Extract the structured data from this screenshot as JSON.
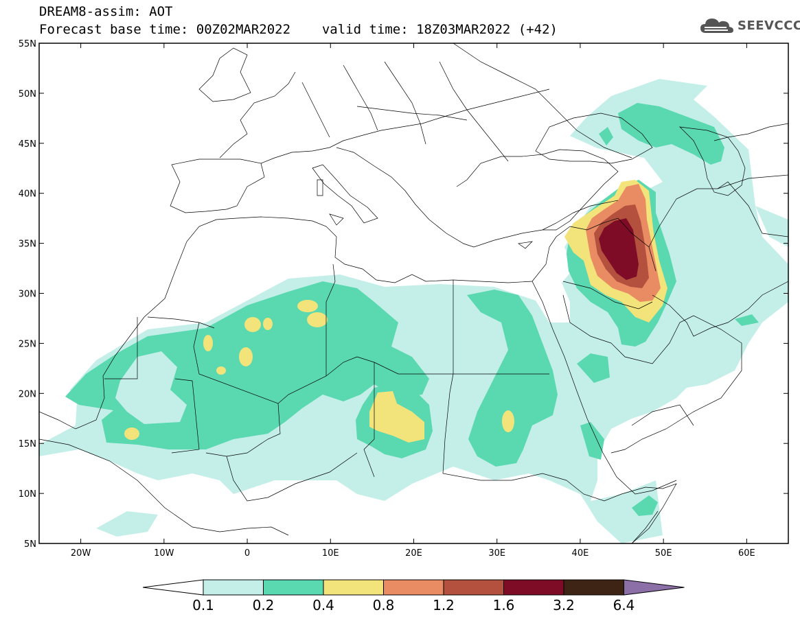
{
  "header": {
    "title": "DREAM8-assim: AOT",
    "base_time": "Forecast base time: 00Z02MAR2022",
    "valid_time": "valid time: 18Z03MAR2022 (+42)"
  },
  "logo": {
    "text": "SEEVCCC",
    "icon": "cloud-icon"
  },
  "map": {
    "lon_range": [
      -25,
      65
    ],
    "lat_range": [
      5,
      55
    ],
    "lon_ticks": [
      {
        "value": -20,
        "label": "20W"
      },
      {
        "value": -10,
        "label": "10W"
      },
      {
        "value": 0,
        "label": "0"
      },
      {
        "value": 10,
        "label": "10E"
      },
      {
        "value": 20,
        "label": "20E"
      },
      {
        "value": 30,
        "label": "30E"
      },
      {
        "value": 40,
        "label": "40E"
      },
      {
        "value": 50,
        "label": "50E"
      },
      {
        "value": 60,
        "label": "60E"
      }
    ],
    "lat_ticks": [
      {
        "value": 55,
        "label": "55N"
      },
      {
        "value": 50,
        "label": "50N"
      },
      {
        "value": 45,
        "label": "45N"
      },
      {
        "value": 40,
        "label": "40N"
      },
      {
        "value": 35,
        "label": "35N"
      },
      {
        "value": 30,
        "label": "30N"
      },
      {
        "value": 25,
        "label": "25N"
      },
      {
        "value": 20,
        "label": "20N"
      },
      {
        "value": 15,
        "label": "15N"
      },
      {
        "value": 10,
        "label": "10N"
      },
      {
        "value": 5,
        "label": "5N"
      }
    ]
  },
  "colorbar": {
    "levels": [
      "0.1",
      "0.2",
      "0.4",
      "0.8",
      "1.2",
      "1.6",
      "3.2",
      "6.4"
    ],
    "colors": [
      "#ffffff",
      "#c4efe9",
      "#5ad8b0",
      "#f2e37a",
      "#e98b63",
      "#b4503e",
      "#7e0c27",
      "#3e2414",
      "#8d6fa8"
    ]
  }
}
